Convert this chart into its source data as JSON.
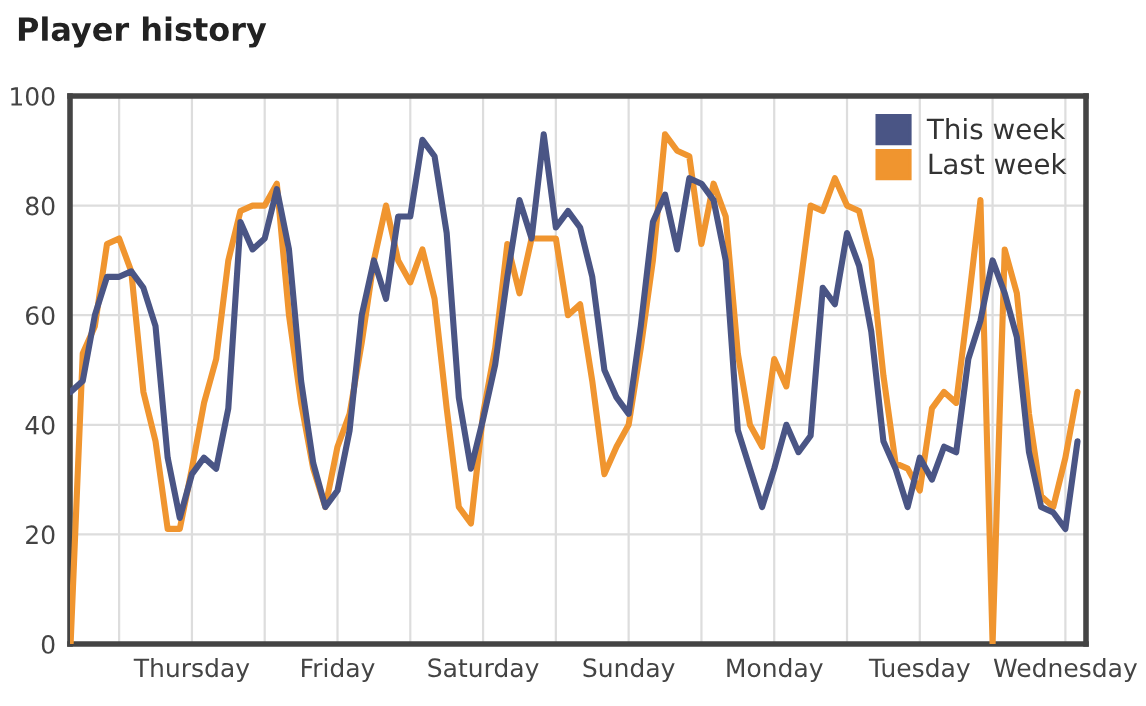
{
  "chart_data": {
    "type": "line",
    "title": "Player history",
    "categories": [
      null,
      null,
      null,
      null,
      null,
      null,
      null,
      null,
      null,
      null,
      "Thursday",
      null,
      null,
      null,
      null,
      null,
      null,
      null,
      null,
      null,
      null,
      null,
      "Friday",
      null,
      null,
      null,
      null,
      null,
      null,
      null,
      null,
      null,
      null,
      null,
      "Saturday",
      null,
      null,
      null,
      null,
      null,
      null,
      null,
      null,
      null,
      null,
      null,
      "Sunday",
      null,
      null,
      null,
      null,
      null,
      null,
      null,
      null,
      null,
      null,
      null,
      "Monday",
      null,
      null,
      null,
      null,
      null,
      null,
      null,
      null,
      null,
      null,
      null,
      "Tuesday",
      null,
      null,
      null,
      null,
      null,
      null,
      null,
      null,
      null,
      null,
      null,
      "Wednesday",
      null
    ],
    "ylim": [
      0,
      100
    ],
    "yticks": [
      0,
      20,
      40,
      60,
      80,
      100
    ],
    "grid": true,
    "legend": "top right",
    "marker": "none",
    "line_style": "solid",
    "series": [
      {
        "name": "Last week",
        "color": "#f0952f",
        "values": [
          0,
          53,
          58,
          73,
          74,
          68,
          46,
          37,
          21,
          21,
          32,
          44,
          52,
          70,
          79,
          80,
          80,
          84,
          60,
          44,
          32,
          25,
          36,
          42,
          55,
          70,
          80,
          70,
          66,
          72,
          63,
          43,
          25,
          22,
          42,
          54,
          73,
          64,
          74,
          74,
          74,
          60,
          62,
          48,
          31,
          36,
          40,
          54,
          70,
          93,
          90,
          89,
          73,
          84,
          78,
          53,
          40,
          36,
          52,
          47,
          63,
          80,
          79,
          85,
          80,
          79,
          70,
          49,
          33,
          32,
          28,
          43,
          46,
          44,
          62,
          81,
          0,
          72,
          64,
          42,
          27,
          25,
          34,
          46
        ]
      },
      {
        "name": "This week",
        "color": "#4a5585",
        "values": [
          46,
          48,
          60,
          67,
          67,
          68,
          65,
          58,
          34,
          23,
          31,
          34,
          32,
          43,
          77,
          72,
          74,
          83,
          72,
          48,
          33,
          25,
          28,
          39,
          60,
          70,
          63,
          78,
          78,
          92,
          89,
          75,
          45,
          32,
          41,
          51,
          67,
          81,
          74,
          93,
          76,
          79,
          76,
          67,
          50,
          45,
          42,
          58,
          77,
          82,
          72,
          85,
          84,
          81,
          70,
          39,
          32,
          25,
          32,
          40,
          35,
          38,
          65,
          62,
          75,
          69,
          57,
          37,
          32,
          25,
          34,
          30,
          36,
          35,
          52,
          59,
          70,
          64,
          56,
          35,
          25,
          24,
          21,
          37
        ]
      }
    ]
  }
}
